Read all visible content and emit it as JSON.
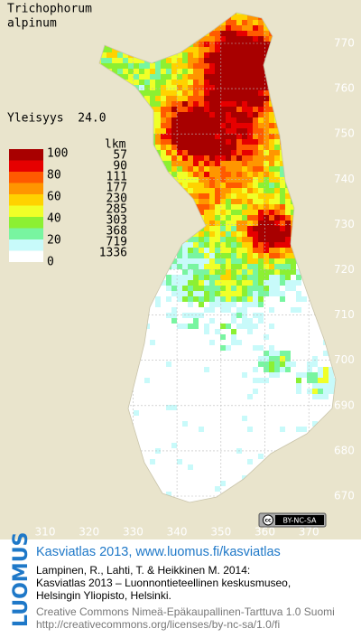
{
  "species": {
    "genus": "Trichophorum",
    "epithet": "alpinum"
  },
  "frequency": "Yleisyys  24.0",
  "legend": {
    "count_header": "lkm",
    "scale_labels": [
      "100",
      "80",
      "60",
      "40",
      "20",
      "0"
    ],
    "classes": [
      {
        "count": "57",
        "color": "#a80000"
      },
      {
        "count": "90",
        "color": "#e60000"
      },
      {
        "count": "111",
        "color": "#ff5a00"
      },
      {
        "count": "177",
        "color": "#ff9600"
      },
      {
        "count": "230",
        "color": "#ffd200"
      },
      {
        "count": "285",
        "color": "#f0ff28"
      },
      {
        "count": "303",
        "color": "#8cf032"
      },
      {
        "count": "368",
        "color": "#78f5a0"
      },
      {
        "count": "719",
        "color": "#c8fafa"
      },
      {
        "count": "1336",
        "color": "#ffffff"
      }
    ]
  },
  "grid_labels": {
    "north": [
      "770",
      "760",
      "750",
      "740",
      "730",
      "720",
      "710",
      "700",
      "690",
      "680",
      "670"
    ],
    "east": [
      "310",
      "320",
      "330",
      "340",
      "350",
      "360",
      "370"
    ]
  },
  "license_badge": "BY-NC-SA",
  "footer": {
    "brand": "LUOMUS",
    "link": "Kasviatlas 2013, www.luomus.fi/kasviatlas",
    "citation": [
      "Lampinen, R., Lahti, T. & Heikkinen M. 2014:",
      "Kasviatlas 2013 – Luonnontieteellinen keskusmuseo,",
      "Helsingin Yliopisto, Helsinki."
    ],
    "license": [
      "Creative Commons Nimeä-Epäkaupallinen-Tarttuva 1.0 Suomi",
      "http://creativecommons.org/licenses/by-nc-sa/1.0/fi"
    ]
  }
}
